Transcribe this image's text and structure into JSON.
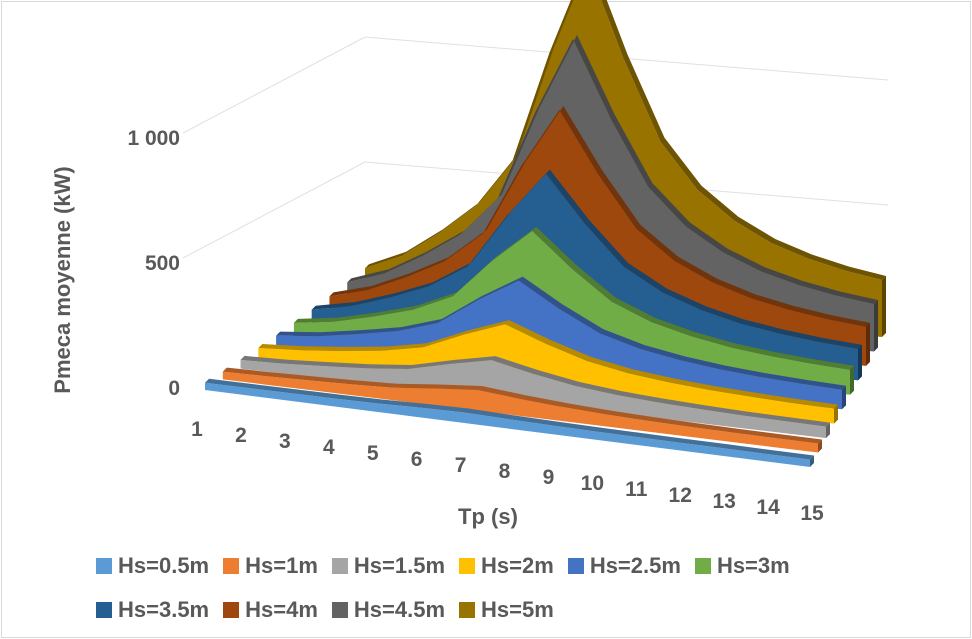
{
  "chart_data": {
    "type": "area",
    "subtype": "3d-area",
    "x": [
      1,
      2,
      3,
      4,
      5,
      6,
      7,
      8,
      9,
      10,
      11,
      12,
      13,
      14,
      15
    ],
    "xlabel": "Tp (s)",
    "ylabel": "Pmeca moyenne  (kW)",
    "y_ticks": [
      "0",
      "500",
      "1 000"
    ],
    "ylim": [
      0,
      1200
    ],
    "grid": true,
    "legend_position": "bottom",
    "series": [
      {
        "name": "Hs=0.5m",
        "color": "#5b9bd5",
        "values": [
          1,
          2,
          3,
          4,
          6,
          11,
          14,
          10,
          7,
          5,
          4,
          3,
          3,
          2,
          2
        ]
      },
      {
        "name": "Hs=1m",
        "color": "#ed7d31",
        "values": [
          3,
          6,
          10,
          15,
          22,
          40,
          55,
          40,
          28,
          20,
          15,
          12,
          10,
          9,
          8
        ]
      },
      {
        "name": "Hs=1.5m",
        "color": "#a5a5a5",
        "values": [
          7,
          12,
          22,
          33,
          50,
          90,
          125,
          90,
          62,
          45,
          35,
          28,
          23,
          20,
          18
        ]
      },
      {
        "name": "Hs=2m",
        "color": "#ffc000",
        "values": [
          12,
          22,
          38,
          58,
          90,
          160,
          220,
          160,
          110,
          80,
          62,
          50,
          42,
          36,
          32
        ]
      },
      {
        "name": "Hs=2.5m",
        "color": "#4472c4",
        "values": [
          19,
          34,
          60,
          90,
          140,
          250,
          345,
          250,
          170,
          125,
          97,
          78,
          65,
          56,
          50
        ]
      },
      {
        "name": "Hs=3m",
        "color": "#70ad47",
        "values": [
          27,
          49,
          86,
          130,
          200,
          360,
          495,
          360,
          245,
          180,
          140,
          112,
          94,
          81,
          72
        ]
      },
      {
        "name": "Hs=3.5m",
        "color": "#255e91",
        "values": [
          37,
          67,
          117,
          177,
          273,
          490,
          675,
          490,
          333,
          245,
          190,
          152,
          128,
          110,
          98
        ]
      },
      {
        "name": "Hs=4m",
        "color": "#9e480e",
        "values": [
          48,
          88,
          153,
          231,
          356,
          640,
          880,
          640,
          435,
          320,
          248,
          199,
          167,
          144,
          128
        ]
      },
      {
        "name": "Hs=4.5m",
        "color": "#636363",
        "values": [
          61,
          111,
          194,
          292,
          450,
          810,
          1115,
          810,
          550,
          405,
          314,
          252,
          211,
          182,
          162
        ]
      },
      {
        "name": "Hs=5m",
        "color": "#997300",
        "values": [
          75,
          137,
          239,
          361,
          556,
          1000,
          1375,
          1000,
          680,
          500,
          388,
          311,
          261,
          225,
          200
        ]
      }
    ]
  }
}
